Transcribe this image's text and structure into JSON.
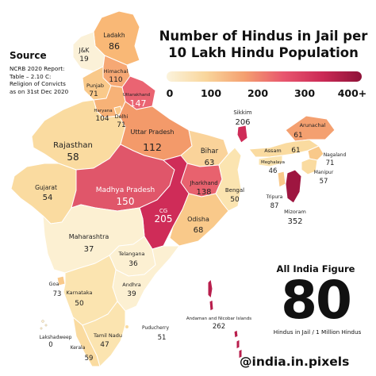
{
  "title_line1": "Number of Hindus in Jail per",
  "title_line2": "10 Lakh Hindu Population",
  "source_heading": "Source",
  "source_text": "NCRB 2020 Report:\nTable – 2.10 C:\nReligion of Convicts\nas on 31st Dec 2020",
  "legend": {
    "ticks": [
      "0",
      "100",
      "200",
      "300",
      "400+"
    ]
  },
  "all_india": {
    "heading": "All India Figure",
    "value": "80",
    "unit": "Hindus in Jail / 1 Million Hindus"
  },
  "handle": "@india.in.pixels",
  "colors": {
    "low": "#fbf3dc",
    "mid": "#f4a070",
    "high": "#cb2a56",
    "max": "#8e1238"
  },
  "regions": {
    "ladakh": {
      "name": "Ladakh",
      "value": "86"
    },
    "jk": {
      "name": "J&K",
      "value": "19"
    },
    "himachal": {
      "name": "Himachal",
      "value": "110"
    },
    "punjab": {
      "name": "Punjab",
      "value": "71"
    },
    "uttarakhand": {
      "name": "Uttarakhand",
      "value": "147"
    },
    "haryana": {
      "name": "Haryana",
      "value": "104"
    },
    "delhi": {
      "name": "Delhi",
      "value": "71"
    },
    "rajasthan": {
      "name": "Rajasthan",
      "value": "58"
    },
    "up": {
      "name": "Uttar Pradesh",
      "value": "112"
    },
    "bihar": {
      "name": "Bihar",
      "value": "63"
    },
    "sikkim": {
      "name": "Sikkim",
      "value": "206"
    },
    "arunachal": {
      "name": "Arunachal",
      "value": "61"
    },
    "assam": {
      "name": "Assam",
      "value": "61"
    },
    "nagaland": {
      "name": "Nagaland",
      "value": "71"
    },
    "meghalaya": {
      "name": "Meghalaya",
      "value": "46"
    },
    "manipur": {
      "name": "Manipur",
      "value": "57"
    },
    "tripura": {
      "name": "Tripura",
      "value": "87"
    },
    "mizoram": {
      "name": "Mizoram",
      "value": "352"
    },
    "gujarat": {
      "name": "Gujarat",
      "value": "54"
    },
    "mp": {
      "name": "Madhya Pradesh",
      "value": "150"
    },
    "jharkhand": {
      "name": "Jharkhand",
      "value": "138"
    },
    "bengal": {
      "name": "Bengal",
      "value": "50"
    },
    "cg": {
      "name": "CG",
      "value": "205"
    },
    "odisha": {
      "name": "Odisha",
      "value": "68"
    },
    "maharashtra": {
      "name": "Maharashtra",
      "value": "37"
    },
    "telangana": {
      "name": "Telangana",
      "value": "36"
    },
    "goa": {
      "name": "Goa",
      "value": "73"
    },
    "andhra": {
      "name": "Andhra",
      "value": "39"
    },
    "karnataka": {
      "name": "Karnataka",
      "value": "50"
    },
    "andaman": {
      "name": "Andaman and Nicobar Islands",
      "value": "262"
    },
    "lakshadweep": {
      "name": "Lakshadweep",
      "value": "0"
    },
    "tamilnadu": {
      "name": "Tamil Nadu",
      "value": "47"
    },
    "puducherry": {
      "name": "Puducherry",
      "value": "51"
    },
    "kerala": {
      "name": "Kerala",
      "value": "59"
    }
  }
}
